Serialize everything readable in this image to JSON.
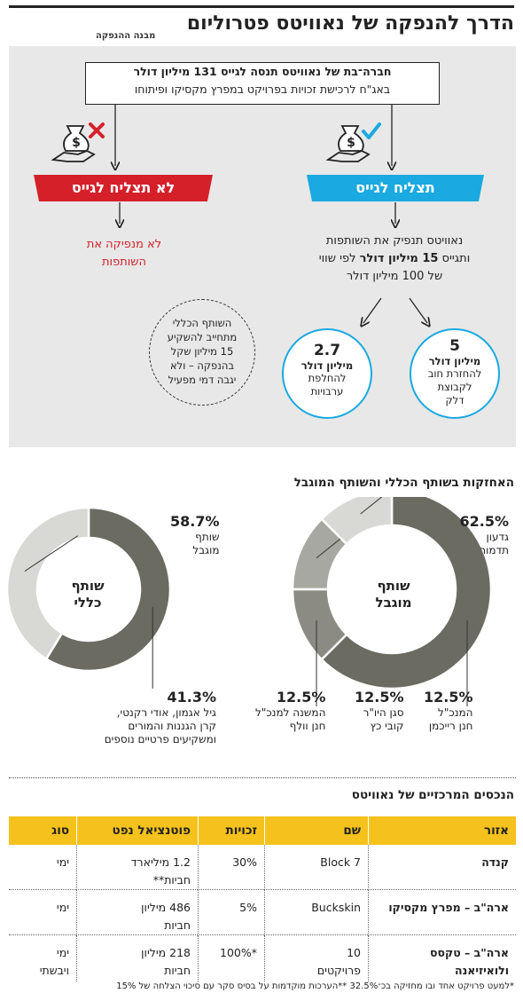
{
  "header": {
    "title": "הדרך להנפקה של נאוויטס פטרוליום",
    "subtitle": "מבנה ההנפקה"
  },
  "structure": {
    "top_line1_bold": "חברה־בת של נאוויטס תנסה לגייס 131 מיליון דולר",
    "top_line2": "באג\"ח לרכישת זכויות בפרויקט במפרץ מקסיקו ופיתוחו",
    "success_label": "תצליח לגייס",
    "fail_label": "לא תצליח לגייס",
    "fail_outcome_line1": "לא מנפיקה את",
    "fail_outcome_line2": "השותפות",
    "success_outcome_line1": "נאוויטס תנפיק את השותפות",
    "success_outcome_line2_pre": "ותגייס ",
    "success_outcome_line2_bold": "15 מיליון דולר",
    "success_outcome_line2_post": " לפי שווי",
    "success_outcome_line3": "של 100 מיליון דולר",
    "use1_num": "5",
    "use1_unit": "מיליון דולר",
    "use1_desc1": "להחזרת חוב",
    "use1_desc2": "לקבוצת",
    "use1_desc3": "דלק",
    "use2_num": "2.7",
    "use2_unit": "מיליון דולר",
    "use2_desc1": "להחלפת",
    "use2_desc2": "ערבויות",
    "gp_note1": "השותף הכללי",
    "gp_note2": "מתחייב להשקיע",
    "gp_note3": "15 מיליון שקל",
    "gp_note4": "בהנפקה – ולא",
    "gp_note5": "יגבה דמי מפעיל"
  },
  "holdings": {
    "title": "האחזקות בשותף הכללי והשותף המוגבל",
    "colors": {
      "dark": "#6b6b62",
      "mid": "#a8a8a2",
      "light": "#d8d8d4"
    }
  },
  "chart_data": [
    {
      "type": "pie",
      "title": "שותף מוגבל",
      "donut": true,
      "categories": [
        "גדעון תדמור",
        "המנכ\"ל חנן רייכמן",
        "סגן היו\"ר קובי כץ",
        "המשנה למנכ\"ל חנן וולף"
      ],
      "values": [
        62.5,
        12.5,
        12.5,
        12.5
      ],
      "value_labels": [
        "62.5%",
        "12.5%",
        "12.5%",
        "12.5%"
      ],
      "label_lines": [
        [
          "גדעון",
          "תדמור"
        ],
        [
          "המנכ\"ל",
          "חנן רייכמן"
        ],
        [
          "סגן היו\"ר",
          "קובי כץ"
        ],
        [
          "המשנה למנכ\"ל",
          "חנן וולף"
        ]
      ],
      "center_label": [
        "שותף",
        "מוגבל"
      ],
      "colors": [
        "#6b6b62",
        "#8b8b84",
        "#a8a8a2",
        "#d8d8d4"
      ]
    },
    {
      "type": "pie",
      "title": "שותף כללי",
      "donut": true,
      "categories": [
        "שותף מוגבל",
        "גיל אגמון, אודי רקנטי, קרן הגננות והמורים ומשקיעים פרטיים נוספים"
      ],
      "values": [
        58.7,
        41.3
      ],
      "value_labels": [
        "58.7%",
        "41.3%"
      ],
      "label_lines": [
        [
          "שותף",
          "מוגבל"
        ],
        [
          "גיל אגמון, אודי רקנטי,",
          "קרן הגננות והמורים",
          "ומשקיעים פרטיים נוספים"
        ]
      ],
      "center_label": [
        "שותף",
        "כללי"
      ],
      "colors": [
        "#6b6b62",
        "#d8d8d4"
      ]
    }
  ],
  "assets": {
    "title": "הנכסים המרכזיים של נאוויטס",
    "headers": [
      "אזור",
      "שם",
      "זכויות",
      "פוטנציאל נפט",
      "סוג"
    ],
    "rows": [
      {
        "area": "קנדה",
        "name": "Block 7",
        "rights": "30%",
        "potential1": "1.2 מיליארד",
        "potential2": "חביות**",
        "type1": "ימי",
        "type2": ""
      },
      {
        "area": "ארה\"ב – מפרץ מקסיקו",
        "name": "Buckskin",
        "rights": "5%",
        "potential1": "486 מיליון",
        "potential2": "חביות",
        "type1": "ימי",
        "type2": ""
      },
      {
        "area": "ארה\"ב – טקסס",
        "area2": "ולואיזיאנה",
        "name": "10",
        "name2": "פרויקטים",
        "rights": "*100%",
        "potential1": "218 מיליון",
        "potential2": "חביות",
        "type1": "ימי",
        "type2": "ויבשתי"
      }
    ],
    "footnote": "*למעט פרויקט אחד ובו מחזיקה בכ־32.5%    **הערכות מוקדמות על בסיס סקר עם סיכוי הצלחה של 15%"
  }
}
